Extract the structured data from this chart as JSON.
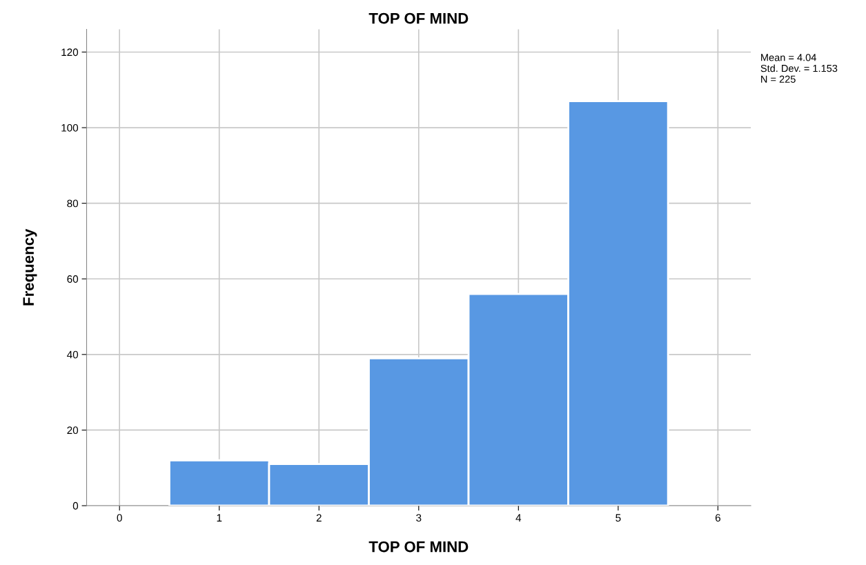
{
  "chart_data": {
    "type": "histogram",
    "title": "TOP OF MIND",
    "xlabel": "TOP OF MIND",
    "ylabel": "Frequency",
    "bins": [
      0.5,
      1.5,
      2.5,
      3.5,
      4.5,
      5.5
    ],
    "values": [
      12,
      11,
      39,
      56,
      107
    ],
    "color": "#5898e3",
    "xlim": [
      -0.33,
      6.33
    ],
    "xticks": [
      0,
      1,
      2,
      3,
      4,
      5,
      6
    ],
    "ylim": [
      0,
      126
    ],
    "yticks": [
      0,
      20,
      40,
      60,
      80,
      100,
      120
    ],
    "grid": true,
    "annotations": [
      "Mean = 4.04\nStd. Dev. = 1.153\nN = 225"
    ]
  }
}
